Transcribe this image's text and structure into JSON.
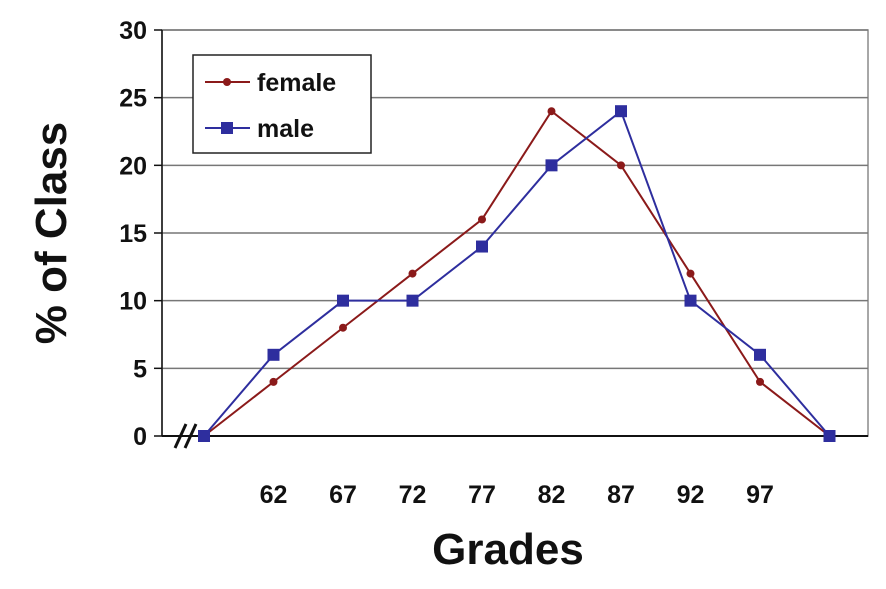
{
  "chart_data": {
    "type": "line",
    "title": "",
    "xlabel": "Grades",
    "ylabel": "% of Class",
    "x": [
      57,
      62,
      67,
      72,
      77,
      82,
      87,
      92,
      97,
      102
    ],
    "x_tick_labels": [
      "",
      "62",
      "67",
      "72",
      "77",
      "82",
      "87",
      "92",
      "97",
      ""
    ],
    "y_ticks": [
      0,
      5,
      10,
      15,
      20,
      25,
      30
    ],
    "ylim": [
      0,
      30
    ],
    "grid": "horizontal",
    "legend_position": "top-left",
    "axis_break": "x-axis near origin",
    "series": [
      {
        "name": "female",
        "color": "#8b1a1a",
        "marker": "circle",
        "values": [
          0,
          4,
          8,
          12,
          16,
          24,
          20,
          12,
          4,
          0
        ]
      },
      {
        "name": "male",
        "color": "#2e2e9e",
        "marker": "square",
        "values": [
          0,
          6,
          10,
          10,
          14,
          20,
          24,
          10,
          6,
          0
        ]
      }
    ]
  }
}
